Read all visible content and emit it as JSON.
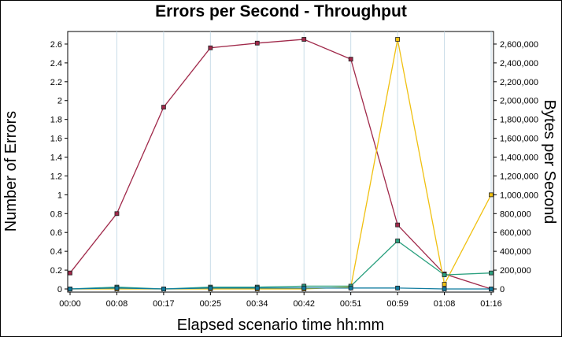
{
  "chart_data": {
    "type": "line",
    "title": "Errors per Second - Throughput",
    "xlabel": "Elapsed scenario time hh:mm",
    "ylabel": "Number of Errors",
    "y2label": "Bytes per Second",
    "categories": [
      "00:00",
      "00:08",
      "00:17",
      "00:25",
      "00:34",
      "00:42",
      "00:51",
      "00:59",
      "01:08",
      "01:16"
    ],
    "ylim": [
      0,
      2.7
    ],
    "y2lim": [
      0,
      2700000
    ],
    "yticks": [
      "0",
      "0.2",
      "0.4",
      "0.6",
      "0.8",
      "1",
      "1.2",
      "1.4",
      "1.6",
      "1.8",
      "2",
      "2.2",
      "2.4",
      "2.6"
    ],
    "y2ticks": [
      "0",
      "200,000",
      "400,000",
      "600,000",
      "800,000",
      "1,000,000",
      "1,200,000",
      "1,400,000",
      "1,600,000",
      "1,800,000",
      "2,000,000",
      "2,200,000",
      "2,400,000",
      "2,600,000"
    ],
    "grid": "vertical",
    "series": [
      {
        "axis": "right",
        "color": "#a0294a",
        "values": [
          170000,
          800000,
          1930000,
          2560000,
          2610000,
          2650000,
          2440000,
          680000,
          160000,
          0
        ]
      },
      {
        "axis": "left",
        "color": "#f0c010",
        "values": [
          0,
          0,
          0,
          0,
          0,
          0,
          0.02,
          2.65,
          0.05,
          1.0
        ]
      },
      {
        "axis": "left",
        "color": "#2aa07e",
        "values": [
          0,
          0.02,
          0,
          0.02,
          0.02,
          0.03,
          0.03,
          0.51,
          0.15,
          0.17
        ]
      },
      {
        "axis": "left",
        "color": "#0e7a9e",
        "values": [
          0,
          0.01,
          0,
          0.01,
          0.01,
          0.01,
          0.01,
          0.01,
          0.0,
          0.0
        ]
      }
    ]
  }
}
